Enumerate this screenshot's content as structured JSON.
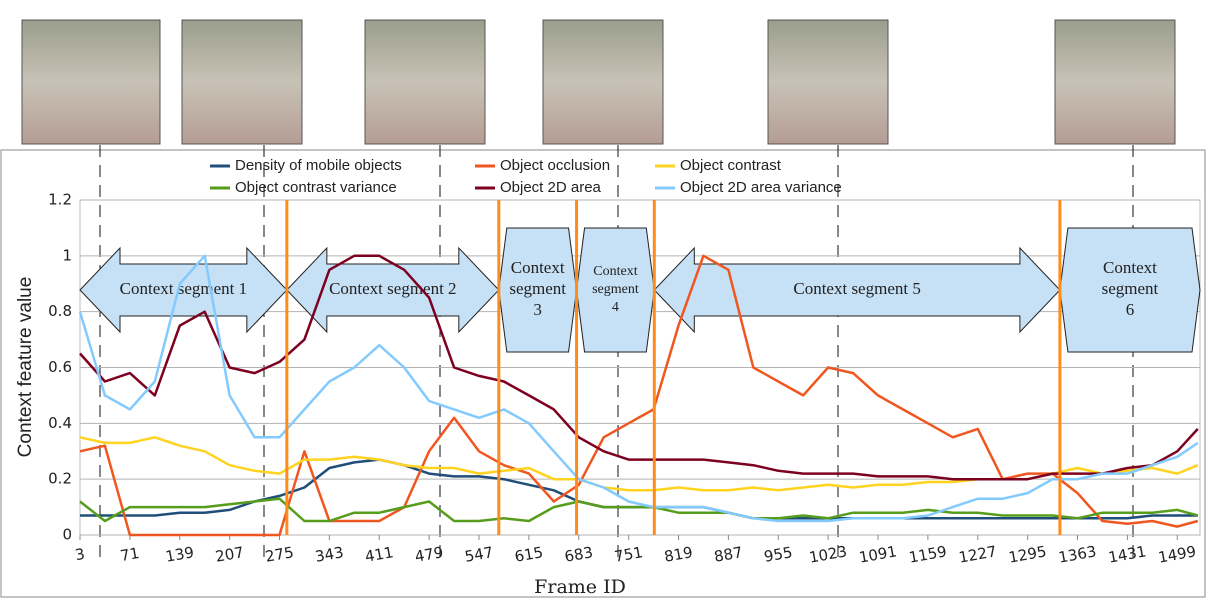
{
  "chart_data": {
    "type": "line",
    "xlabel": "Frame ID",
    "ylabel": "Context feature value",
    "x": [
      3,
      37,
      71,
      105,
      139,
      173,
      207,
      241,
      275,
      309,
      343,
      377,
      411,
      445,
      479,
      513,
      547,
      581,
      615,
      649,
      683,
      717,
      751,
      785,
      819,
      853,
      887,
      921,
      955,
      989,
      1023,
      1057,
      1091,
      1125,
      1159,
      1193,
      1227,
      1261,
      1295,
      1329,
      1363,
      1397,
      1431,
      1465,
      1499,
      1527
    ],
    "xlim": [
      3,
      1530
    ],
    "xticks": [
      3,
      71,
      139,
      207,
      275,
      343,
      411,
      479,
      547,
      615,
      683,
      751,
      819,
      887,
      955,
      1023,
      1091,
      1159,
      1227,
      1295,
      1363,
      1431,
      1499
    ],
    "ylim": [
      0,
      1.2
    ],
    "yticks": [
      0,
      0.2,
      0.4,
      0.6,
      0.8,
      1,
      1.2
    ],
    "grid": true,
    "series": [
      {
        "name": "Density of mobile objects",
        "color": "#1f4e79",
        "values": [
          0.07,
          0.07,
          0.07,
          0.07,
          0.08,
          0.08,
          0.09,
          0.12,
          0.14,
          0.17,
          0.24,
          0.26,
          0.27,
          0.25,
          0.22,
          0.21,
          0.21,
          0.2,
          0.18,
          0.16,
          0.12,
          0.1,
          0.1,
          0.1,
          0.1,
          0.1,
          0.08,
          0.06,
          0.06,
          0.06,
          0.06,
          0.06,
          0.06,
          0.06,
          0.06,
          0.06,
          0.06,
          0.06,
          0.06,
          0.06,
          0.06,
          0.06,
          0.06,
          0.07,
          0.07,
          0.07
        ]
      },
      {
        "name": "Object occlusion",
        "color": "#f0561f",
        "values": [
          0.3,
          0.32,
          0,
          0,
          0,
          0,
          0,
          0,
          0,
          0.3,
          0.05,
          0.05,
          0.05,
          0.1,
          0.3,
          0.42,
          0.3,
          0.25,
          0.22,
          0.12,
          0.18,
          0.35,
          0.4,
          0.45,
          0.75,
          1,
          0.95,
          0.6,
          0.55,
          0.5,
          0.6,
          0.58,
          0.5,
          0.45,
          0.4,
          0.35,
          0.38,
          0.2,
          0.22,
          0.22,
          0.15,
          0.05,
          0.04,
          0.05,
          0.03,
          0.05
        ]
      },
      {
        "name": "Object contrast",
        "color": "#ffd320",
        "values": [
          0.35,
          0.33,
          0.33,
          0.35,
          0.32,
          0.3,
          0.25,
          0.23,
          0.22,
          0.27,
          0.27,
          0.28,
          0.27,
          0.25,
          0.24,
          0.24,
          0.22,
          0.23,
          0.24,
          0.2,
          0.2,
          0.17,
          0.16,
          0.16,
          0.17,
          0.16,
          0.16,
          0.17,
          0.16,
          0.17,
          0.18,
          0.17,
          0.18,
          0.18,
          0.19,
          0.19,
          0.2,
          0.2,
          0.2,
          0.22,
          0.24,
          0.22,
          0.23,
          0.24,
          0.22,
          0.25
        ]
      },
      {
        "name": "Object contrast variance",
        "color": "#579d1c",
        "values": [
          0.12,
          0.05,
          0.1,
          0.1,
          0.1,
          0.1,
          0.11,
          0.12,
          0.13,
          0.05,
          0.05,
          0.08,
          0.08,
          0.1,
          0.12,
          0.05,
          0.05,
          0.06,
          0.05,
          0.1,
          0.12,
          0.1,
          0.1,
          0.1,
          0.08,
          0.08,
          0.08,
          0.06,
          0.06,
          0.07,
          0.06,
          0.08,
          0.08,
          0.08,
          0.09,
          0.08,
          0.08,
          0.07,
          0.07,
          0.07,
          0.06,
          0.08,
          0.08,
          0.08,
          0.09,
          0.07
        ]
      },
      {
        "name": "Object 2D area",
        "color": "#7e0021",
        "values": [
          0.65,
          0.55,
          0.58,
          0.5,
          0.75,
          0.8,
          0.6,
          0.58,
          0.62,
          0.7,
          0.95,
          1,
          1,
          0.95,
          0.85,
          0.6,
          0.57,
          0.55,
          0.5,
          0.45,
          0.35,
          0.3,
          0.27,
          0.27,
          0.27,
          0.27,
          0.26,
          0.25,
          0.23,
          0.22,
          0.22,
          0.22,
          0.21,
          0.21,
          0.21,
          0.2,
          0.2,
          0.2,
          0.2,
          0.22,
          0.22,
          0.22,
          0.24,
          0.25,
          0.3,
          0.38
        ]
      },
      {
        "name": "Object 2D area variance",
        "color": "#83caff",
        "values": [
          0.8,
          0.5,
          0.45,
          0.55,
          0.9,
          1,
          0.5,
          0.35,
          0.35,
          0.45,
          0.55,
          0.6,
          0.68,
          0.6,
          0.48,
          0.45,
          0.42,
          0.45,
          0.4,
          0.3,
          0.2,
          0.17,
          0.12,
          0.1,
          0.1,
          0.1,
          0.08,
          0.06,
          0.05,
          0.05,
          0.05,
          0.06,
          0.06,
          0.06,
          0.07,
          0.1,
          0.13,
          0.13,
          0.15,
          0.2,
          0.2,
          0.22,
          0.22,
          0.25,
          0.28,
          0.33
        ]
      }
    ],
    "segment_boundaries": [
      285,
      574,
      680,
      786,
      1339
    ],
    "segment_color": "#ff8c1a",
    "segments": [
      [
        "Context segment 1"
      ],
      [
        "Context segment 2"
      ],
      [
        "Context",
        "segment",
        "3"
      ],
      [
        "Context",
        "segment",
        "4"
      ],
      [
        "Context segment 5"
      ],
      [
        "Context",
        "segment",
        "6"
      ]
    ]
  }
}
